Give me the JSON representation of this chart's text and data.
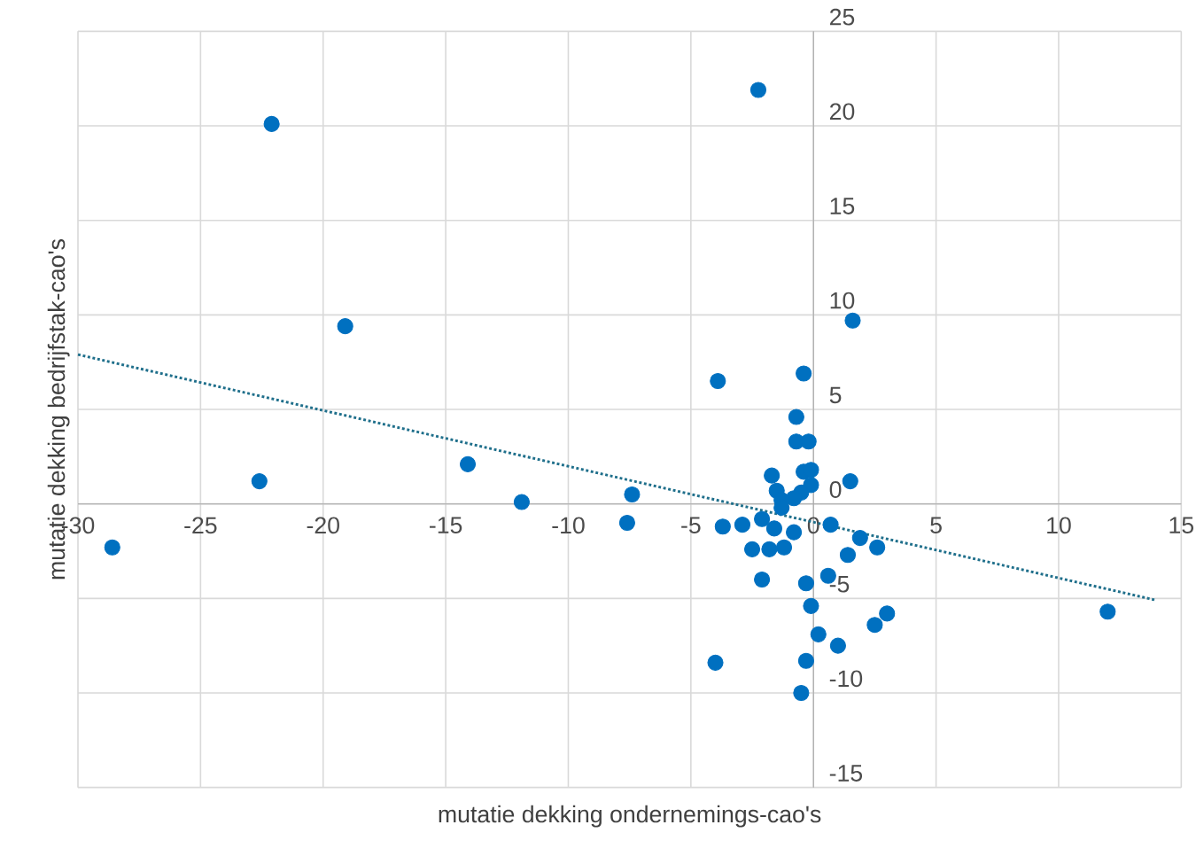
{
  "chart_data": {
    "type": "scatter",
    "xlabel": "mutatie dekking ondernemings-cao's",
    "ylabel": "mutatie dekking bedrijfstak-cao's",
    "xlim": [
      -30,
      15
    ],
    "ylim": [
      -15,
      25
    ],
    "xticks": [
      -30,
      -25,
      -20,
      -15,
      -10,
      -5,
      0,
      5,
      10,
      15
    ],
    "yticks": [
      -15,
      -10,
      -5,
      0,
      5,
      10,
      15,
      20,
      25
    ],
    "grid": true,
    "series": [
      {
        "type": "scatter",
        "color": "#0070c0",
        "marker": "circle",
        "x": [
          -2.25,
          -22.1,
          -19.1,
          1.6,
          -3.9,
          -0.4,
          -22.6,
          -14.1,
          -11.9,
          -7.4,
          -7.6,
          -28.6,
          1.5,
          -0.7,
          -0.7,
          -0.2,
          -1.7,
          -0.4,
          -0.1,
          -1.5,
          -0.1,
          -0.5,
          -0.8,
          -1.3,
          -1.3,
          -3.7,
          -2.9,
          -2.1,
          -1.6,
          -0.8,
          0.7,
          -2.5,
          -1.8,
          -1.2,
          1.9,
          2.6,
          1.4,
          -2.1,
          -0.3,
          0.6,
          -0.1,
          3.0,
          2.5,
          0.2,
          1.0,
          -0.3,
          -4.0,
          -0.5,
          12.0
        ],
        "values": [
          21.9,
          20.1,
          9.4,
          9.7,
          6.5,
          6.9,
          1.2,
          2.1,
          0.1,
          0.5,
          -1.0,
          -2.3,
          1.2,
          4.6,
          3.3,
          3.3,
          1.5,
          1.7,
          1.8,
          0.7,
          1.0,
          0.6,
          0.3,
          0.2,
          -0.2,
          -1.2,
          -1.1,
          -0.8,
          -1.3,
          -1.5,
          -1.1,
          -2.4,
          -2.4,
          -2.3,
          -1.8,
          -2.3,
          -2.7,
          -4.0,
          -4.2,
          -3.8,
          -5.4,
          -5.8,
          -6.4,
          -6.9,
          -7.5,
          -8.3,
          -8.4,
          -10.0,
          -5.7
        ]
      },
      {
        "type": "line",
        "color": "#1f6f8b",
        "marker": "none",
        "line_style": "dotted",
        "x": [
          -30,
          14
        ],
        "values": [
          7.9,
          -5.1
        ]
      }
    ]
  }
}
